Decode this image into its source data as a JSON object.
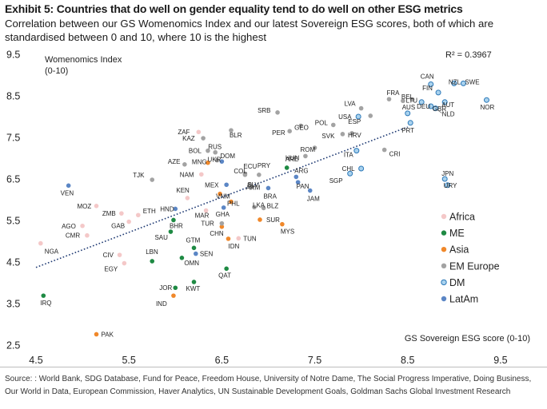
{
  "header": {
    "title": "Exhibit 5: Countries that do well on gender equality tend to do well on other ESG metrics",
    "subtitle": "Correlation between our GS Womenomics Index and our latest Sovereign ESG scores, both of which are standardised between 0 and 10, where 10 is the highest"
  },
  "footer": {
    "source": "Source: : World Bank, SDG Database, Fund for Peace, Freedom House, University of Notre Dame, The Social Progress Imperative, Doing Business, Our World in Data, European Commission, Haver Analytics, UN Sustainable Development Goals, Goldman Sachs Global Investment Research"
  },
  "colors": {
    "Africa": "#f4c8c8",
    "ME": "#1e8a43",
    "Asia": "#f0882a",
    "EM Europe": "#a3a3a3",
    "DM": "#a9d2ee",
    "DM_stroke": "#2b78b8",
    "LatAm": "#5b86c5",
    "trend": "#1f3a73"
  },
  "chart_data": {
    "type": "scatter",
    "ylabel": "Womenomics Index",
    "ylabel_unit": "(0-10)",
    "xlabel": "GS Sovereign ESG score (0-10)",
    "r2_label": "R² = 0.3967",
    "xlim": [
      4.5,
      10.0
    ],
    "ylim": [
      2.5,
      9.5
    ],
    "x_ticks": [
      "4.5",
      "5.5",
      "6.5",
      "7.5",
      "8.5",
      "9.5"
    ],
    "y_ticks": [
      "9.5",
      "8.5",
      "7.5",
      "6.5",
      "5.5",
      "4.5",
      "3.5",
      "2.5"
    ],
    "trendline": {
      "x1": 4.5,
      "y1": 4.37,
      "x2": 8.5,
      "y2": 7.75
    },
    "legend": [
      "Africa",
      "ME",
      "Asia",
      "EM Europe",
      "DM",
      "LatAm"
    ],
    "series": [
      {
        "name": "Africa",
        "points": [
          {
            "label": "NGA",
            "x": 4.55,
            "y": 4.95
          },
          {
            "label": "AGO",
            "x": 5.0,
            "y": 5.37
          },
          {
            "label": "CMR",
            "x": 5.05,
            "y": 5.14
          },
          {
            "label": "MOZ",
            "x": 5.15,
            "y": 5.85
          },
          {
            "label": "ZMB",
            "x": 5.42,
            "y": 5.67
          },
          {
            "label": "GAB",
            "x": 5.5,
            "y": 5.47
          },
          {
            "label": "CIV",
            "x": 5.4,
            "y": 4.67
          },
          {
            "label": "EGY",
            "x": 5.45,
            "y": 4.47
          },
          {
            "label": "ETH",
            "x": 5.6,
            "y": 5.63
          },
          {
            "label": "ZAF",
            "x": 6.25,
            "y": 7.63
          },
          {
            "label": "NAM",
            "x": 6.28,
            "y": 6.61
          },
          {
            "label": "KEN",
            "x": 6.13,
            "y": 6.04
          },
          {
            "label": "MAR",
            "x": 6.33,
            "y": 5.74
          },
          {
            "label": "TUN",
            "x": 6.68,
            "y": 5.07
          }
        ]
      },
      {
        "name": "ME",
        "points": [
          {
            "label": "IRQ",
            "x": 4.58,
            "y": 3.69
          },
          {
            "label": "BHR",
            "x": 5.98,
            "y": 5.51
          },
          {
            "label": "SAU",
            "x": 5.95,
            "y": 5.23
          },
          {
            "label": "LBN",
            "x": 5.75,
            "y": 4.52
          },
          {
            "label": "OMN",
            "x": 6.07,
            "y": 4.6
          },
          {
            "label": "GTM",
            "x": 6.2,
            "y": 4.84
          },
          {
            "label": "JOR",
            "x": 6.0,
            "y": 3.88
          },
          {
            "label": "KWT",
            "x": 6.2,
            "y": 4.02
          },
          {
            "label": "QAT",
            "x": 6.55,
            "y": 4.34
          },
          {
            "label": "ARE",
            "x": 7.2,
            "y": 6.77
          }
        ]
      },
      {
        "name": "Asia",
        "points": [
          {
            "label": "PAK",
            "x": 5.15,
            "y": 2.76
          },
          {
            "label": "IND",
            "x": 5.98,
            "y": 3.69
          },
          {
            "label": "VNM",
            "x": 6.48,
            "y": 6.14
          },
          {
            "label": "PHL",
            "x": 6.6,
            "y": 5.95
          },
          {
            "label": "CHN",
            "x": 6.5,
            "y": 5.35
          },
          {
            "label": "IDN",
            "x": 6.57,
            "y": 5.06
          },
          {
            "label": "SUR",
            "x": 6.91,
            "y": 5.52
          },
          {
            "label": "MYS",
            "x": 7.15,
            "y": 5.41
          },
          {
            "label": "MNG",
            "x": 6.35,
            "y": 6.89
          }
        ]
      },
      {
        "name": "EM Europe",
        "points": [
          {
            "label": "TJK",
            "x": 5.75,
            "y": 6.48
          },
          {
            "label": "AZE",
            "x": 6.1,
            "y": 6.85
          },
          {
            "label": "KAZ",
            "x": 6.3,
            "y": 7.48
          },
          {
            "label": "BLR",
            "x": 6.6,
            "y": 7.67
          },
          {
            "label": "BOL",
            "x": 6.35,
            "y": 7.18
          },
          {
            "label": "RUS",
            "x": 6.43,
            "y": 7.14
          },
          {
            "label": "UKR",
            "x": 6.45,
            "y": 6.95
          },
          {
            "label": "COL",
            "x": 6.75,
            "y": 6.63
          },
          {
            "label": "TUR",
            "x": 6.5,
            "y": 5.43
          },
          {
            "label": "SRB",
            "x": 7.1,
            "y": 8.1
          },
          {
            "label": "PER",
            "x": 7.23,
            "y": 7.65
          },
          {
            "label": "GEO",
            "x": 7.35,
            "y": 7.78
          },
          {
            "label": "HUN",
            "x": 7.4,
            "y": 7.05
          },
          {
            "label": "ROM",
            "x": 7.5,
            "y": 7.25
          },
          {
            "label": "POL",
            "x": 7.7,
            "y": 7.8
          },
          {
            "label": "SVK",
            "x": 7.8,
            "y": 7.58
          },
          {
            "label": "HRV",
            "x": 7.9,
            "y": 7.6
          },
          {
            "label": "ECU",
            "x": 6.75,
            "y": 6.6
          },
          {
            "label": "PRY",
            "x": 6.9,
            "y": 6.6
          },
          {
            "label": "SLV",
            "x": 6.8,
            "y": 6.37
          },
          {
            "label": "ARM",
            "x": 6.82,
            "y": 6.3
          },
          {
            "label": "LKA",
            "x": 6.85,
            "y": 5.82
          },
          {
            "label": "BLZ",
            "x": 6.95,
            "y": 5.8
          },
          {
            "label": "CRI",
            "x": 8.25,
            "y": 7.2
          },
          {
            "label": "LVA",
            "x": 8.0,
            "y": 8.2
          },
          {
            "label": "ESP",
            "x": 8.1,
            "y": 8.02
          },
          {
            "label": "FRA",
            "x": 8.3,
            "y": 8.42
          },
          {
            "label": "BEL",
            "x": 8.45,
            "y": 8.38
          },
          {
            "label": "LTU",
            "x": 8.55,
            "y": 8.41
          }
        ]
      },
      {
        "name": "DM",
        "points": [
          {
            "label": "USA",
            "x": 7.97,
            "y": 8.0
          },
          {
            "label": "ITA",
            "x": 7.95,
            "y": 7.18
          },
          {
            "label": "CHL",
            "x": 8.0,
            "y": 6.75
          },
          {
            "label": "SGP",
            "x": 7.88,
            "y": 6.63
          },
          {
            "label": "AUS",
            "x": 8.5,
            "y": 8.08
          },
          {
            "label": "PRT",
            "x": 8.53,
            "y": 7.85
          },
          {
            "label": "CAN",
            "x": 8.75,
            "y": 8.78
          },
          {
            "label": "FIN",
            "x": 8.83,
            "y": 8.58
          },
          {
            "label": "NZL",
            "x": 9.0,
            "y": 8.8
          },
          {
            "label": "SWE",
            "x": 9.1,
            "y": 8.8
          },
          {
            "label": "DEU",
            "x": 8.65,
            "y": 8.35
          },
          {
            "label": "AUT",
            "x": 8.9,
            "y": 8.35
          },
          {
            "label": "GBR",
            "x": 8.75,
            "y": 8.25
          },
          {
            "label": "NLD",
            "x": 8.8,
            "y": 8.2
          },
          {
            "label": "NOR",
            "x": 9.35,
            "y": 8.4
          },
          {
            "label": "JPN",
            "x": 8.9,
            "y": 6.5
          },
          {
            "label": "URY",
            "x": 8.93,
            "y": 6.35
          }
        ]
      },
      {
        "name": "LatAm",
        "points": [
          {
            "label": "VEN",
            "x": 4.85,
            "y": 6.34
          },
          {
            "label": "HND",
            "x": 6.0,
            "y": 5.78
          },
          {
            "label": "DOM",
            "x": 6.5,
            "y": 6.92
          },
          {
            "label": "MEX",
            "x": 6.55,
            "y": 6.36
          },
          {
            "label": "GHA",
            "x": 6.52,
            "y": 5.81
          },
          {
            "label": "SEN",
            "x": 6.22,
            "y": 4.7
          },
          {
            "label": "BRA",
            "x": 7.0,
            "y": 6.28
          },
          {
            "label": "ARG",
            "x": 7.3,
            "y": 6.55
          },
          {
            "label": "PAN",
            "x": 7.32,
            "y": 6.42
          },
          {
            "label": "JAM",
            "x": 7.45,
            "y": 6.22
          }
        ]
      }
    ]
  }
}
